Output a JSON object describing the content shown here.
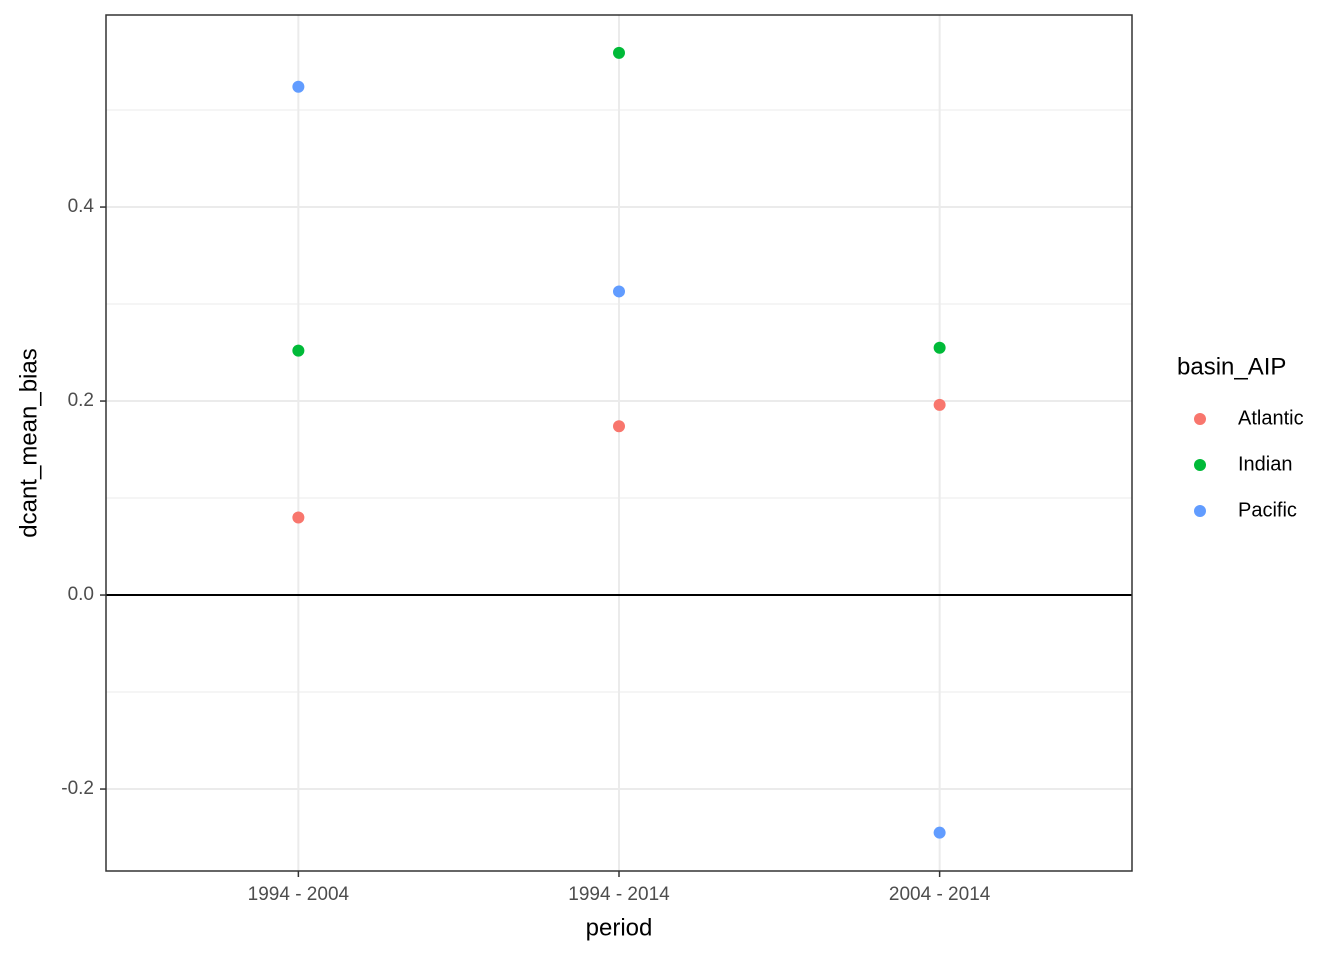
{
  "chart_data": {
    "type": "scatter",
    "x_label": "period",
    "y_label": "dcant_mean_bias",
    "legend_title": "basin_AIP",
    "legend_position": "right",
    "categories": [
      "1994 - 2004",
      "1994 - 2014",
      "2004 - 2014"
    ],
    "series": [
      {
        "name": "Atlantic",
        "color": "#F8766D",
        "values": [
          0.08,
          0.174,
          0.196
        ]
      },
      {
        "name": "Indian",
        "color": "#00BA38",
        "values": [
          0.252,
          0.559,
          0.255
        ]
      },
      {
        "name": "Pacific",
        "color": "#619CFF",
        "values": [
          0.524,
          0.313,
          -0.245
        ]
      }
    ],
    "ylim": [
      -0.2845,
      0.598
    ],
    "yticks": [
      -0.2,
      {
        "value": 0,
        "label": "0.0"
      },
      0.2,
      0.4
    ],
    "yminor": [
      -0.1,
      0.1,
      0.3,
      0.5
    ],
    "hline": 0,
    "grid": true
  }
}
